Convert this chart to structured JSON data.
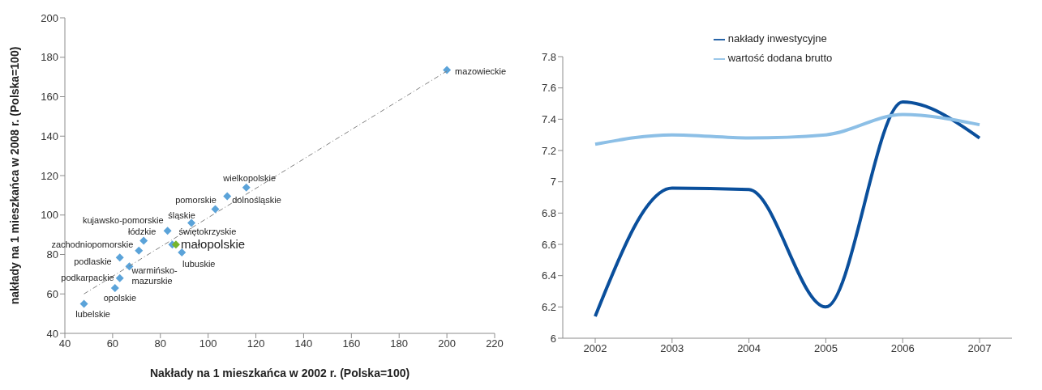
{
  "chart_data": [
    {
      "type": "scatter",
      "xlabel": "Nakłady na 1 mieszkańca w 2002 r. (Polska=100)",
      "ylabel": "nakłady na 1 mieszkańca w 2008 r. (Polska=100)",
      "xlim": [
        40,
        220
      ],
      "xticks": [
        40,
        60,
        80,
        100,
        120,
        140,
        160,
        180,
        200,
        220
      ],
      "ylim": [
        40,
        200
      ],
      "yticks": [
        40,
        60,
        80,
        100,
        120,
        140,
        160,
        180,
        200
      ],
      "grid": false,
      "legend": false,
      "marker": "diamond",
      "series": [
        {
          "color": "#5ba3d9",
          "x": [
            48,
            61,
            63,
            67,
            63,
            71,
            73,
            83,
            85,
            89,
            93,
            103,
            108,
            116,
            200
          ],
          "values": [
            55,
            63,
            68,
            74,
            78.5,
            82,
            87,
            92,
            85,
            81,
            96,
            103,
            109.5,
            114,
            173.5
          ]
        },
        {
          "color": "#77b52b",
          "x": [
            86.5
          ],
          "values": [
            85
          ]
        },
        {
          "type": "line",
          "color": "#7f7f7f",
          "line_style": "dashed",
          "marker": "none",
          "x": [
            48,
            200
          ],
          "values": [
            60,
            173
          ]
        }
      ],
      "annotations": [
        {
          "text": "lubelskie",
          "x": 48,
          "y": 55
        },
        {
          "text": "opolskie",
          "x": 61,
          "y": 63
        },
        {
          "text": "podkarpackie",
          "x": 63,
          "y": 68
        },
        {
          "text": "warmińsko-\nmazurskie",
          "x": 67,
          "y": 74
        },
        {
          "text": "podlaskie",
          "x": 63,
          "y": 78.5
        },
        {
          "text": "zachodniopomorskie",
          "x": 71,
          "y": 82
        },
        {
          "text": "łódzkie",
          "x": 73,
          "y": 87
        },
        {
          "text": "kujawsko-pomorskie",
          "x": 83,
          "y": 92
        },
        {
          "text": "świętokrzyskie",
          "x": 85,
          "y": 85
        },
        {
          "text": "małopolskie",
          "x": 86.5,
          "y": 85
        },
        {
          "text": "lubuskie",
          "x": 89,
          "y": 81
        },
        {
          "text": "śląskie",
          "x": 93,
          "y": 96
        },
        {
          "text": "pomorskie",
          "x": 103,
          "y": 103
        },
        {
          "text": "dolnośląskie",
          "x": 108,
          "y": 109.5
        },
        {
          "text": "wielkopolskie",
          "x": 116,
          "y": 114
        },
        {
          "text": "mazowieckie",
          "x": 200,
          "y": 173.5
        }
      ]
    },
    {
      "type": "line",
      "categories": [
        "2002",
        "2003",
        "2004",
        "2005",
        "2006",
        "2007"
      ],
      "ylim": [
        6,
        7.8
      ],
      "yticks": [
        6,
        6.2,
        6.4,
        6.6,
        6.8,
        7,
        7.2,
        7.4,
        7.6,
        7.8
      ],
      "grid": false,
      "legend": "top",
      "marker": "none",
      "series": [
        {
          "name": "nakłady inwestycyjne",
          "color": "#0a4f9c",
          "values": [
            6.14,
            6.96,
            6.95,
            6.2,
            7.51,
            7.28
          ]
        },
        {
          "name": "wartość dodana brutto",
          "color": "#8cbfe6",
          "values": [
            7.24,
            7.3,
            7.28,
            7.3,
            7.43,
            7.365
          ]
        }
      ]
    }
  ]
}
